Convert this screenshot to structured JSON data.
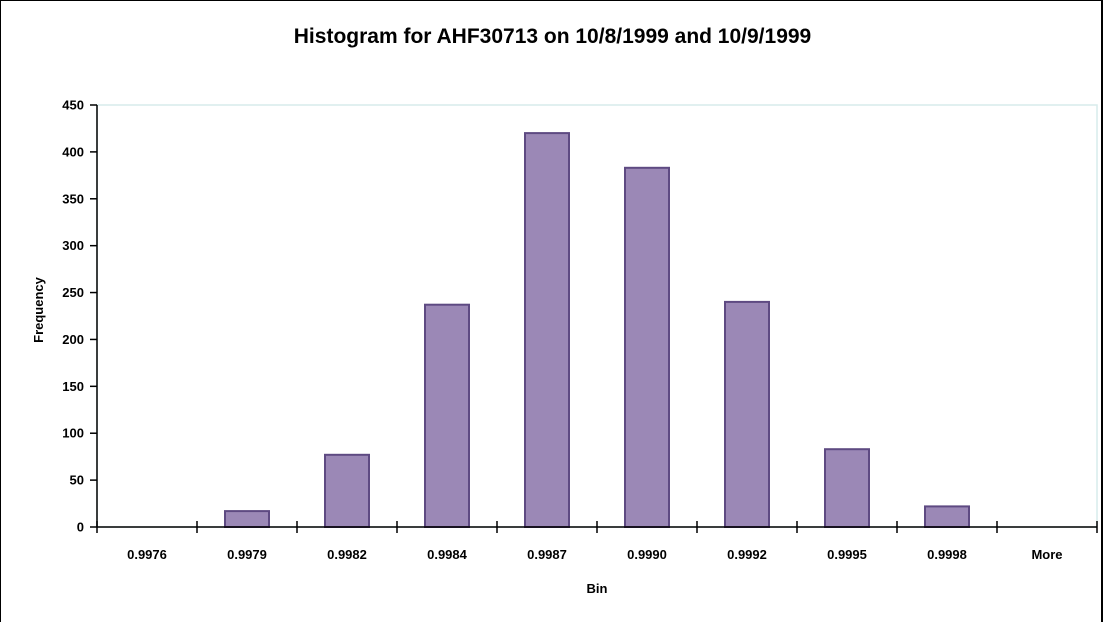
{
  "chart_data": {
    "type": "bar",
    "title": "Histogram for AHF30713 on 10/8/1999 and 10/9/1999",
    "xlabel": "Bin",
    "ylabel": "Frequency",
    "categories": [
      "0.9976",
      "0.9979",
      "0.9982",
      "0.9984",
      "0.9987",
      "0.9990",
      "0.9992",
      "0.9995",
      "0.9998",
      "More"
    ],
    "values": [
      0,
      17,
      77,
      237,
      420,
      383,
      240,
      83,
      22,
      0
    ],
    "ylim": [
      0,
      450
    ],
    "yticks": [
      0,
      50,
      100,
      150,
      200,
      250,
      300,
      350,
      400,
      450
    ],
    "grid": false,
    "legend": "none",
    "colors": {
      "bar_fill": "#9b88b6",
      "bar_stroke": "#5e4a82",
      "plot_border": "#d7ecec",
      "axis": "#000000"
    }
  }
}
